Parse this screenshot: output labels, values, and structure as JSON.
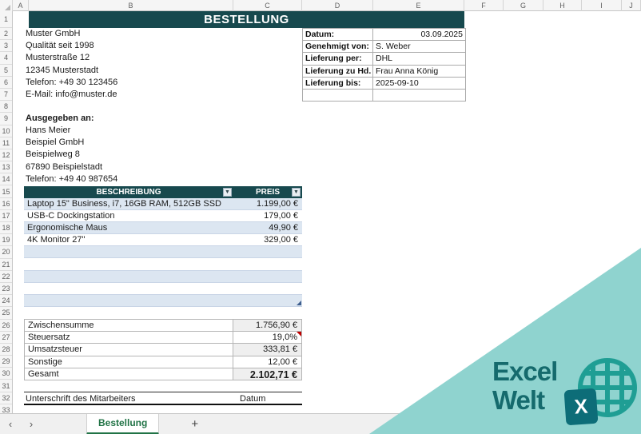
{
  "title": "BESTELLUNG",
  "grid": {
    "columns": [
      "A",
      "B",
      "C",
      "D",
      "E",
      "F",
      "G",
      "H",
      "I",
      "J"
    ],
    "rows": [
      "1",
      "2",
      "3",
      "4",
      "5",
      "6",
      "7",
      "8",
      "9",
      "10",
      "11",
      "12",
      "13",
      "14",
      "15",
      "16",
      "17",
      "18",
      "19",
      "20",
      "21",
      "22",
      "23",
      "24",
      "25",
      "26",
      "27",
      "28",
      "29",
      "30",
      "31",
      "32",
      "33"
    ]
  },
  "company": {
    "lines": [
      "Muster GmbH",
      "Qualität seit 1998",
      "Musterstraße 12",
      "12345 Musterstadt",
      "Telefon: +49 30 123456",
      "E-Mail: info@muster.de"
    ]
  },
  "recipient": {
    "heading": "Ausgegeben an:",
    "lines": [
      "Hans Meier",
      "Beispiel GmbH",
      "Beispielweg 8",
      "67890 Beispielstadt",
      "Telefon: +49 40 987654"
    ]
  },
  "order_info": {
    "rows": [
      {
        "label": "Datum:",
        "value": "03.09.2025",
        "value_align": "right"
      },
      {
        "label": "Genehmigt von:",
        "value": "S. Weber",
        "value_align": "left"
      },
      {
        "label": "Lieferung per:",
        "value": "DHL",
        "value_align": "left"
      },
      {
        "label": "Lieferung zu Hd. v",
        "value": "Frau Anna König",
        "value_align": "left"
      },
      {
        "label": "Lieferung bis:",
        "value": "2025-09-10",
        "value_align": "left"
      },
      {
        "label": "",
        "value": "",
        "value_align": "left"
      }
    ]
  },
  "items": {
    "columns": [
      "BESCHREIBUNG",
      "PREIS"
    ],
    "filter_glyph": "▼",
    "rows": [
      {
        "description": "Laptop 15\" Business, i7, 16GB RAM, 512GB SSD",
        "price": "1.199,00 €"
      },
      {
        "description": "USB-C Dockingstation",
        "price": "179,00 €"
      },
      {
        "description": "Ergonomische Maus",
        "price": "49,90 €"
      },
      {
        "description": "4K Monitor 27\"",
        "price": "329,00 €"
      },
      {
        "description": "",
        "price": ""
      },
      {
        "description": "",
        "price": ""
      },
      {
        "description": "",
        "price": ""
      },
      {
        "description": "",
        "price": ""
      },
      {
        "description": "",
        "price": ""
      }
    ]
  },
  "summary": {
    "rows": [
      {
        "label": "Zwischensumme",
        "value": "1.756,90 €",
        "shaded": true,
        "bold": false,
        "comment": false
      },
      {
        "label": "Steuersatz",
        "value": "19,0%",
        "shaded": false,
        "bold": false,
        "comment": true
      },
      {
        "label": "Umsatzsteuer",
        "value": "333,81 €",
        "shaded": true,
        "bold": false,
        "comment": false
      },
      {
        "label": "Sonstige",
        "value": "12,00 €",
        "shaded": false,
        "bold": false,
        "comment": false
      },
      {
        "label": "Gesamt",
        "value": "2.102,71 €",
        "shaded": true,
        "bold": true,
        "comment": false
      }
    ]
  },
  "signature": {
    "left": "Unterschrift des Mitarbeiters",
    "right": "Datum"
  },
  "tabs": {
    "prev": "‹",
    "next": "›",
    "sheets": [
      {
        "label": "Bestellung",
        "active": true
      }
    ],
    "add": "+"
  },
  "watermark": {
    "word1": "Excel",
    "word2": "Welt",
    "letter": "X"
  },
  "colors": {
    "header_teal": "#17494e",
    "band_blue": "#dce6f1",
    "shade_gray": "#efefef",
    "triangle_teal": "#8fd3cf",
    "logo_dark_teal": "#156a6d",
    "logo_globe_teal": "#1f9e94",
    "tab_green": "#217346",
    "comment_red": "#c00000"
  }
}
